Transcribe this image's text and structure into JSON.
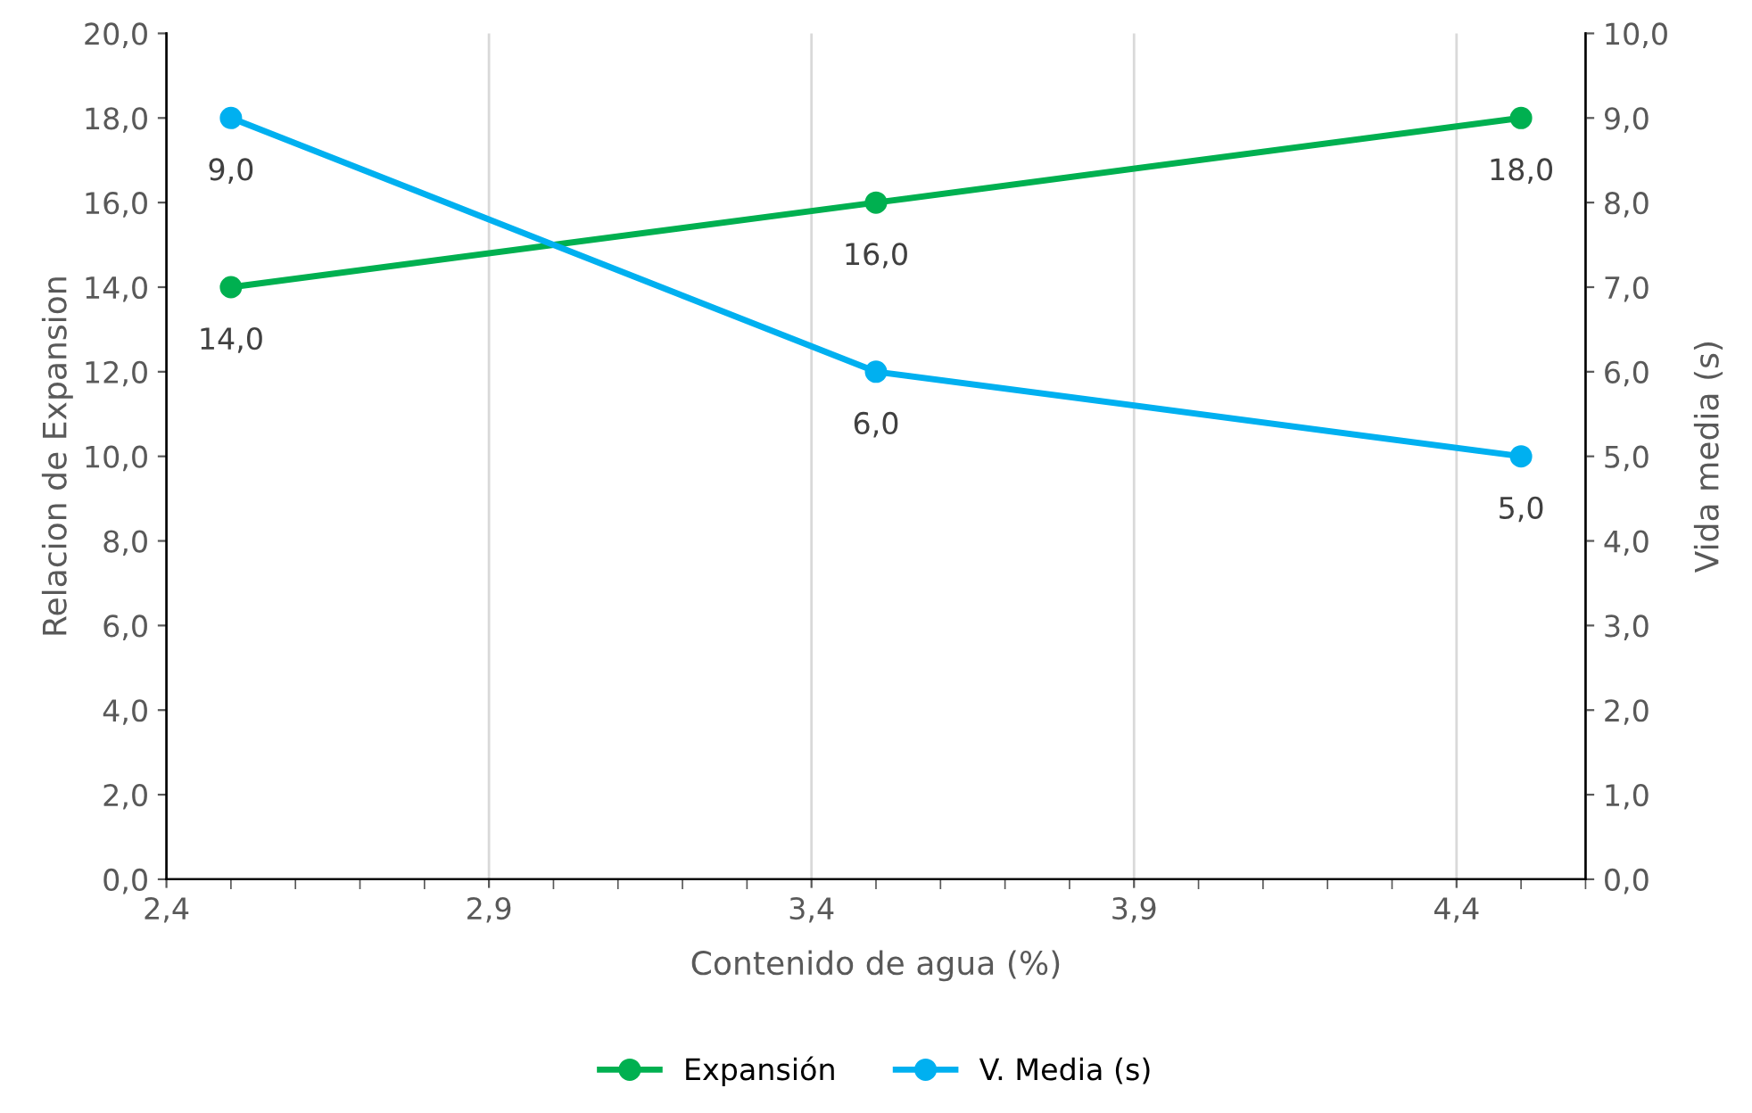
{
  "chart_data": {
    "type": "line",
    "xlabel": "Contenido de agua (%)",
    "ylabel": "Relacion de Expansion",
    "y2label": "Vida media (s)",
    "xlim": [
      2.4,
      4.6
    ],
    "xticks": [
      {
        "value": 2.4,
        "label": "2,4"
      },
      {
        "value": 2.9,
        "label": "2,9"
      },
      {
        "value": 3.4,
        "label": "3,4"
      },
      {
        "value": 3.9,
        "label": "3,9"
      },
      {
        "value": 4.4,
        "label": "4,4"
      }
    ],
    "ylim": [
      0,
      20
    ],
    "yticks": [
      {
        "value": 0,
        "label": "0,0"
      },
      {
        "value": 2,
        "label": "2,0"
      },
      {
        "value": 4,
        "label": "4,0"
      },
      {
        "value": 6,
        "label": "6,0"
      },
      {
        "value": 8,
        "label": "8,0"
      },
      {
        "value": 10,
        "label": "10,0"
      },
      {
        "value": 12,
        "label": "12,0"
      },
      {
        "value": 14,
        "label": "14,0"
      },
      {
        "value": 16,
        "label": "16,0"
      },
      {
        "value": 18,
        "label": "18,0"
      },
      {
        "value": 20,
        "label": "20,0"
      }
    ],
    "y2lim": [
      0,
      10
    ],
    "y2ticks": [
      {
        "value": 0,
        "label": "0,0"
      },
      {
        "value": 1,
        "label": "1,0"
      },
      {
        "value": 2,
        "label": "2,0"
      },
      {
        "value": 3,
        "label": "3,0"
      },
      {
        "value": 4,
        "label": "4,0"
      },
      {
        "value": 5,
        "label": "5,0"
      },
      {
        "value": 6,
        "label": "6,0"
      },
      {
        "value": 7,
        "label": "7,0"
      },
      {
        "value": 8,
        "label": "8,0"
      },
      {
        "value": 9,
        "label": "9,0"
      },
      {
        "value": 10,
        "label": "10,0"
      }
    ],
    "x": [
      2.5,
      3.5,
      4.5
    ],
    "series": [
      {
        "name": "Expansión",
        "color": "#00b050",
        "values": [
          14,
          16,
          18
        ],
        "value_labels": [
          "14,0",
          "16,0",
          "18,0"
        ]
      },
      {
        "name": "V. Media (s)",
        "color": "#00b0f0",
        "values": [
          9,
          6,
          5
        ],
        "value_labels": [
          "9,0",
          "6,0",
          "5,0"
        ],
        "axis": "y2"
      }
    ],
    "grid": "x",
    "legend": "bottom",
    "marker": "circle",
    "line_style": "solid"
  }
}
